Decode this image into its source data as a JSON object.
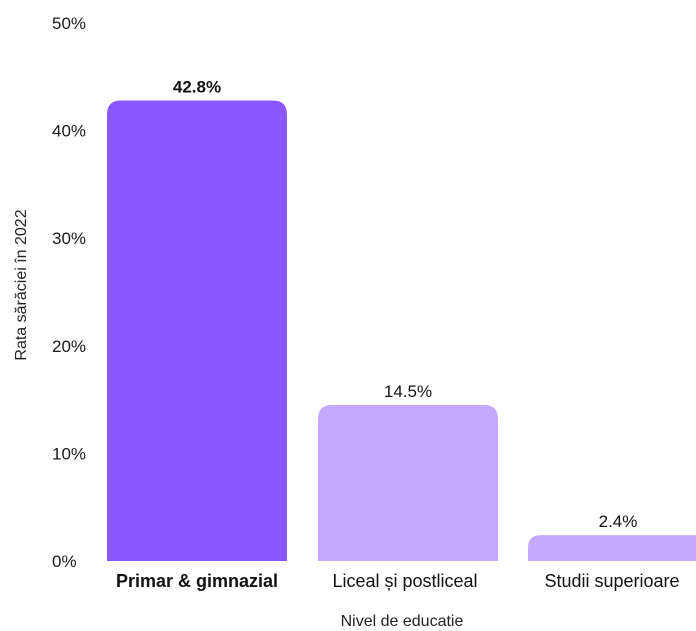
{
  "chart_data": {
    "type": "bar",
    "categories": [
      "Primar & gimnazial",
      "Liceal și postliceal",
      "Studii superioare"
    ],
    "values": [
      42.8,
      14.5,
      2.4
    ],
    "value_labels": [
      "42.8%",
      "14.5%",
      "2.4%"
    ],
    "highlighted_category": "Primar & gimnazial",
    "xlabel": "Nivel de educatie",
    "ylabel": "Rata sărăciei în 2022",
    "ylim": [
      0,
      50
    ],
    "yticks": [
      0,
      10,
      20,
      30,
      40,
      50
    ],
    "ytick_labels": [
      "0%",
      "10%",
      "20%",
      "30%",
      "40%",
      "50%"
    ],
    "grid": false,
    "legend": "none",
    "colors": {
      "highlight": "#8B57FF",
      "default": "#C5A8FF"
    }
  }
}
